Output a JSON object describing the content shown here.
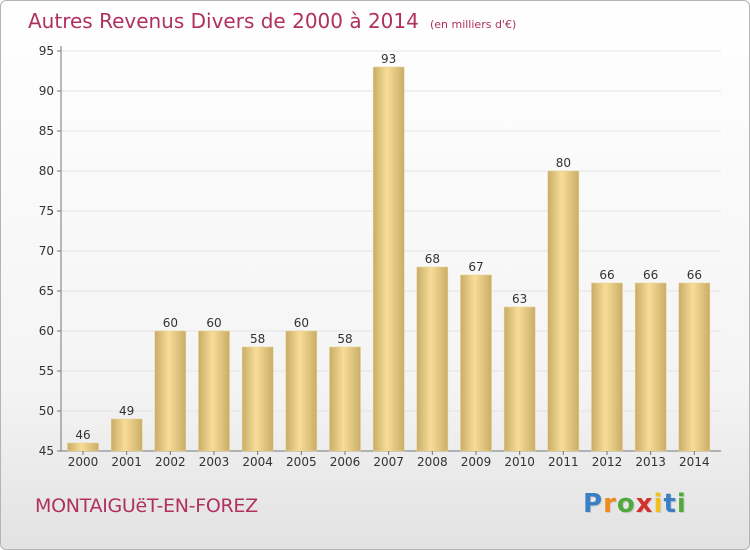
{
  "header": {
    "title": "Autres Revenus Divers de 2000 à 2014",
    "unit": "(en milliers d'€)"
  },
  "footer": {
    "city": "MONTAIGUëT-EN-FOREZ",
    "logo_letters": [
      "P",
      "r",
      "o",
      "x",
      "i",
      "t",
      "i"
    ],
    "logo_colors": [
      "#3a7ec4",
      "#f08a1c",
      "#52a83c",
      "#d4312c",
      "#f2c01e",
      "#3a7ec4",
      "#52a83c"
    ]
  },
  "colors": {
    "bar_light": "#f7dd98",
    "bar_dark": "#c9ad67",
    "text": "#b03060",
    "grid": "#e4e4e4"
  },
  "chart_data": {
    "type": "bar",
    "title": "Autres Revenus Divers de 2000 à 2014",
    "subtitle": "(en milliers d'€)",
    "categories": [
      "2000",
      "2001",
      "2002",
      "2003",
      "2004",
      "2005",
      "2006",
      "2007",
      "2008",
      "2009",
      "2010",
      "2011",
      "2012",
      "2013",
      "2014"
    ],
    "values": [
      46,
      49,
      60,
      60,
      58,
      60,
      58,
      93,
      68,
      67,
      63,
      80,
      66,
      66,
      66
    ],
    "ylim": [
      45,
      95
    ],
    "yticks": [
      45,
      50,
      55,
      60,
      65,
      70,
      75,
      80,
      85,
      90,
      95
    ],
    "grid": true,
    "xlabel": "",
    "ylabel": ""
  }
}
